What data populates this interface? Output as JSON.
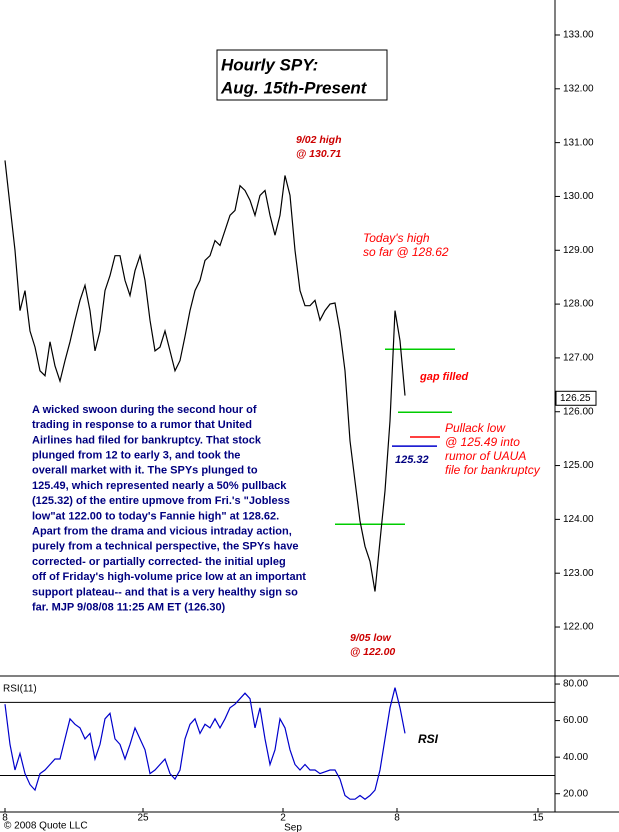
{
  "chart_data": [
    {
      "type": "line",
      "title": "Hourly SPY:",
      "subtitle": "Aug. 15th-Present",
      "x": [
        0,
        1,
        2,
        3,
        4,
        5,
        6,
        7,
        8,
        9,
        10,
        11,
        12,
        13,
        14,
        15,
        16,
        17,
        18,
        19,
        20,
        21,
        22,
        23,
        24,
        25,
        26,
        27,
        28,
        29,
        30,
        31,
        32,
        33,
        34,
        35,
        36,
        37,
        38,
        39,
        40,
        41,
        42,
        43,
        44,
        45,
        46,
        47,
        48,
        49,
        50,
        51,
        52,
        53,
        54,
        55,
        56,
        57,
        58,
        59,
        60,
        61,
        62,
        63,
        64,
        65,
        66,
        67,
        68,
        69,
        70,
        71,
        72,
        73,
        74,
        75,
        76,
        77,
        78,
        79,
        80
      ],
      "series": [
        {
          "color": "#000000",
          "values": [
            130.67,
            129.83,
            129.0,
            127.88,
            128.25,
            127.5,
            127.2,
            126.76,
            126.67,
            127.3,
            126.85,
            126.57,
            126.95,
            127.3,
            127.7,
            128.07,
            128.35,
            127.88,
            127.13,
            127.5,
            128.25,
            128.53,
            128.9,
            128.9,
            128.44,
            128.16,
            128.62,
            128.9,
            128.44,
            127.7,
            127.13,
            127.2,
            127.5,
            127.13,
            126.76,
            126.95,
            127.4,
            127.88,
            128.25,
            128.44,
            128.81,
            128.9,
            129.18,
            129.09,
            129.37,
            129.65,
            129.74,
            130.2,
            130.11,
            129.93,
            129.65,
            130.02,
            130.11,
            129.65,
            129.28,
            129.65,
            130.39,
            130.02,
            129.0,
            128.25,
            127.97,
            127.97,
            128.07,
            127.7,
            127.88,
            128.0,
            128.02,
            127.5,
            126.76,
            125.46,
            124.71,
            123.97,
            123.5,
            123.22,
            122.66,
            123.6,
            124.53,
            125.83,
            127.88,
            127.32,
            126.3
          ]
        }
      ],
      "xlim": [
        -1,
        110
      ],
      "ylim": [
        121.09,
        133.65
      ],
      "yticks": [
        {
          "value": 122,
          "label": "122.00"
        },
        {
          "value": 123,
          "label": "123.00"
        },
        {
          "value": 124,
          "label": "124.00"
        },
        {
          "value": 125,
          "label": "125.00"
        },
        {
          "value": 126,
          "label": "126.00"
        },
        {
          "value": 127,
          "label": "127.00"
        },
        {
          "value": 128,
          "label": "128.00"
        },
        {
          "value": 129,
          "label": "129.00"
        },
        {
          "value": 130,
          "label": "130.00"
        },
        {
          "value": 131,
          "label": "131.00"
        },
        {
          "value": 132,
          "label": "132.00"
        },
        {
          "value": 133,
          "label": "133.00"
        }
      ],
      "last_price": 126.25,
      "levels": [
        {
          "value": 127.16,
          "color": "#00cc00"
        },
        {
          "value": 125.99,
          "color": "#00cc00"
        },
        {
          "value": 123.91,
          "color": "#00cc00"
        },
        {
          "value": 125.36,
          "color": "#0000cc"
        },
        {
          "value": 125.53,
          "color": "#ff0000"
        }
      ],
      "annotations": [
        {
          "lines": [
            "9/02 high",
            "@ 130.71"
          ],
          "color": "#cc0000"
        },
        {
          "lines": [
            "Today's high",
            "so far @ 128.62"
          ],
          "color": "#ff0000"
        },
        {
          "lines": [
            "gap filled"
          ],
          "color": "#ff0000"
        },
        {
          "lines": [
            "Pullack low",
            "@ 125.49 into",
            "rumor of UAUA",
            "file for bankruptcy"
          ],
          "color": "#ff0000"
        },
        {
          "lines": [
            "9/05 low",
            "@ 122.00"
          ],
          "color": "#cc0000"
        },
        {
          "lines": [
            "125.32"
          ],
          "color": "#000080"
        }
      ],
      "note": [
        "A wicked swoon during the second hour of",
        "trading in response to a rumor that United",
        "Airlines had filed for bankruptcy. That stock",
        "plunged from 12 to early 3, and took the",
        "overall market with it. The SPYs plunged to",
        "125.49, which represented nearly a 50% pullback",
        "(125.32) of the entire upmove from Fri.'s \"Jobless",
        "low\"at 122.00 to today's Fannie high\" at 128.62.",
        "Apart from the drama and vicious intraday action,",
        "purely from a technical perspective, the SPYs have",
        "corrected- or partially corrected- the initial upleg",
        "off of Friday's high-volume price low at an important",
        "support plateau-- and that is a very healthy sign so",
        "far.   MJP  9/08/08  11:25 AM ET  (126.30)"
      ]
    },
    {
      "type": "line",
      "label": "RSI(11)",
      "x": [
        0,
        1,
        2,
        3,
        4,
        5,
        6,
        7,
        8,
        9,
        10,
        11,
        12,
        13,
        14,
        15,
        16,
        17,
        18,
        19,
        20,
        21,
        22,
        23,
        24,
        25,
        26,
        27,
        28,
        29,
        30,
        31,
        32,
        33,
        34,
        35,
        36,
        37,
        38,
        39,
        40,
        41,
        42,
        43,
        44,
        45,
        46,
        47,
        48,
        49,
        50,
        51,
        52,
        53,
        54,
        55,
        56,
        57,
        58,
        59,
        60,
        61,
        62,
        63,
        64,
        65,
        66,
        67,
        68,
        69,
        70,
        71,
        72,
        73,
        74,
        75,
        76,
        77,
        78,
        79,
        80
      ],
      "series": [
        {
          "color": "#0000cc",
          "values": [
            69,
            47,
            33,
            42,
            31,
            25,
            22,
            31,
            33,
            36,
            39,
            39,
            50,
            61,
            58,
            56,
            50,
            53,
            39,
            47,
            61,
            64,
            50,
            47,
            39,
            47,
            56,
            50,
            44,
            31,
            33,
            36,
            39,
            31,
            28,
            33,
            50,
            58,
            61,
            53,
            58,
            56,
            61,
            56,
            61,
            67,
            69,
            72,
            75,
            72,
            56,
            67,
            50,
            36,
            44,
            61,
            56,
            44,
            36,
            33,
            36,
            33,
            33,
            31,
            32,
            33,
            33,
            28,
            19,
            17,
            17,
            19,
            17,
            19,
            22,
            33,
            50,
            67,
            78,
            67,
            53
          ]
        }
      ],
      "xlim": [
        -1,
        110
      ],
      "ylim": [
        10,
        84.4
      ],
      "yticks": [
        {
          "value": 20,
          "label": "20.00"
        },
        {
          "value": 40,
          "label": "40.00"
        },
        {
          "value": 60,
          "label": "60.00"
        },
        {
          "value": 80,
          "label": "80.00"
        }
      ],
      "levels": [
        {
          "value": 70,
          "color": "#000000"
        },
        {
          "value": 30,
          "color": "#000000"
        }
      ],
      "annotations": [
        {
          "lines": [
            "RSI"
          ],
          "color": "#000000"
        }
      ],
      "xticks": [
        {
          "value": 0,
          "label": "8"
        },
        {
          "value": 27.6,
          "label": "25"
        },
        {
          "value": 55.6,
          "label": "2"
        },
        {
          "value": 78.4,
          "label": "8"
        },
        {
          "value": 106.6,
          "label": "15"
        }
      ],
      "month_label": "Sep",
      "copyright": "© 2008 Quote LLC"
    }
  ]
}
